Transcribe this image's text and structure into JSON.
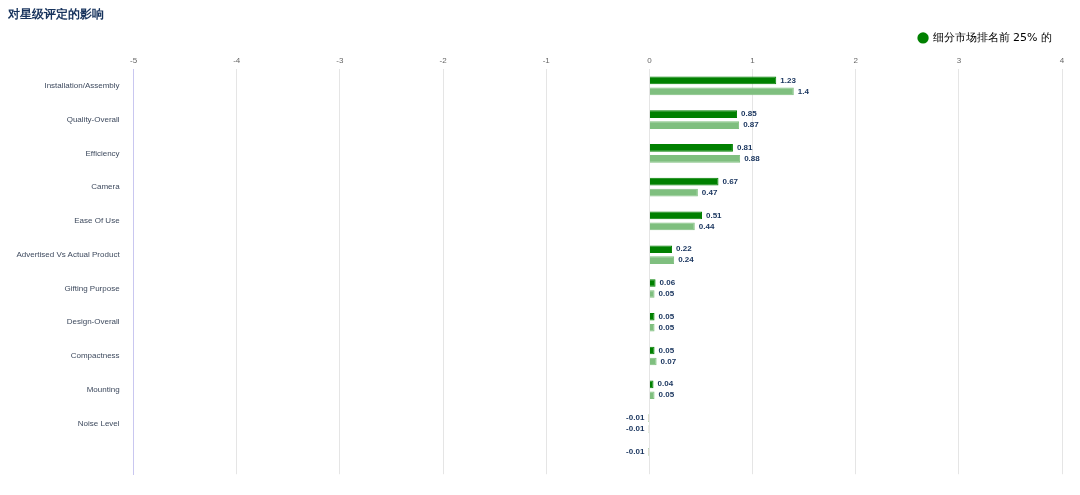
{
  "chart_data": {
    "type": "bar",
    "orientation": "horizontal",
    "title": "对星级评定的影响",
    "categories": [
      "Installation/Assembly",
      "Quality-Overall",
      "Efficiency",
      "Camera",
      "Ease Of Use",
      "Advertised Vs Actual Product",
      "Gifting Purpose",
      "Design-Overall",
      "Compactness",
      "Mounting",
      "Noise Level",
      null
    ],
    "series": [
      {
        "name": "细分市场排名前 25% 的",
        "color": "#008000",
        "colors": [
          "#008000",
          "#008000",
          "#008000",
          "#008000",
          "#008000",
          "#008000",
          "#008000",
          "#008000",
          "#008000",
          "#008000",
          "#f08080",
          "#f08080"
        ],
        "values": [
          1.23,
          0.85,
          0.81,
          0.67,
          0.51,
          0.22,
          0.06,
          0.05,
          0.05,
          0.04,
          -0.01,
          -0.01
        ]
      },
      {
        "color": "#7fbf7f",
        "colors": [
          "#7fbf7f",
          "#7fbf7f",
          "#7fbf7f",
          "#7fbf7f",
          "#7fbf7f",
          "#7fbf7f",
          "#7fbf7f",
          "#7fbf7f",
          "#7fbf7f",
          "#7fbf7f",
          "#f8c0c0",
          null
        ],
        "values": [
          1.4,
          0.87,
          0.88,
          0.47,
          0.44,
          0.24,
          0.05,
          0.05,
          0.07,
          0.05,
          -0.01,
          null
        ]
      }
    ],
    "xlim": [
      -5,
      4
    ],
    "xticks": [
      -5,
      -4,
      -3,
      -2,
      -1,
      0,
      1,
      2,
      3,
      4
    ],
    "grid": "x",
    "legend": "top right",
    "data_labels": true
  }
}
